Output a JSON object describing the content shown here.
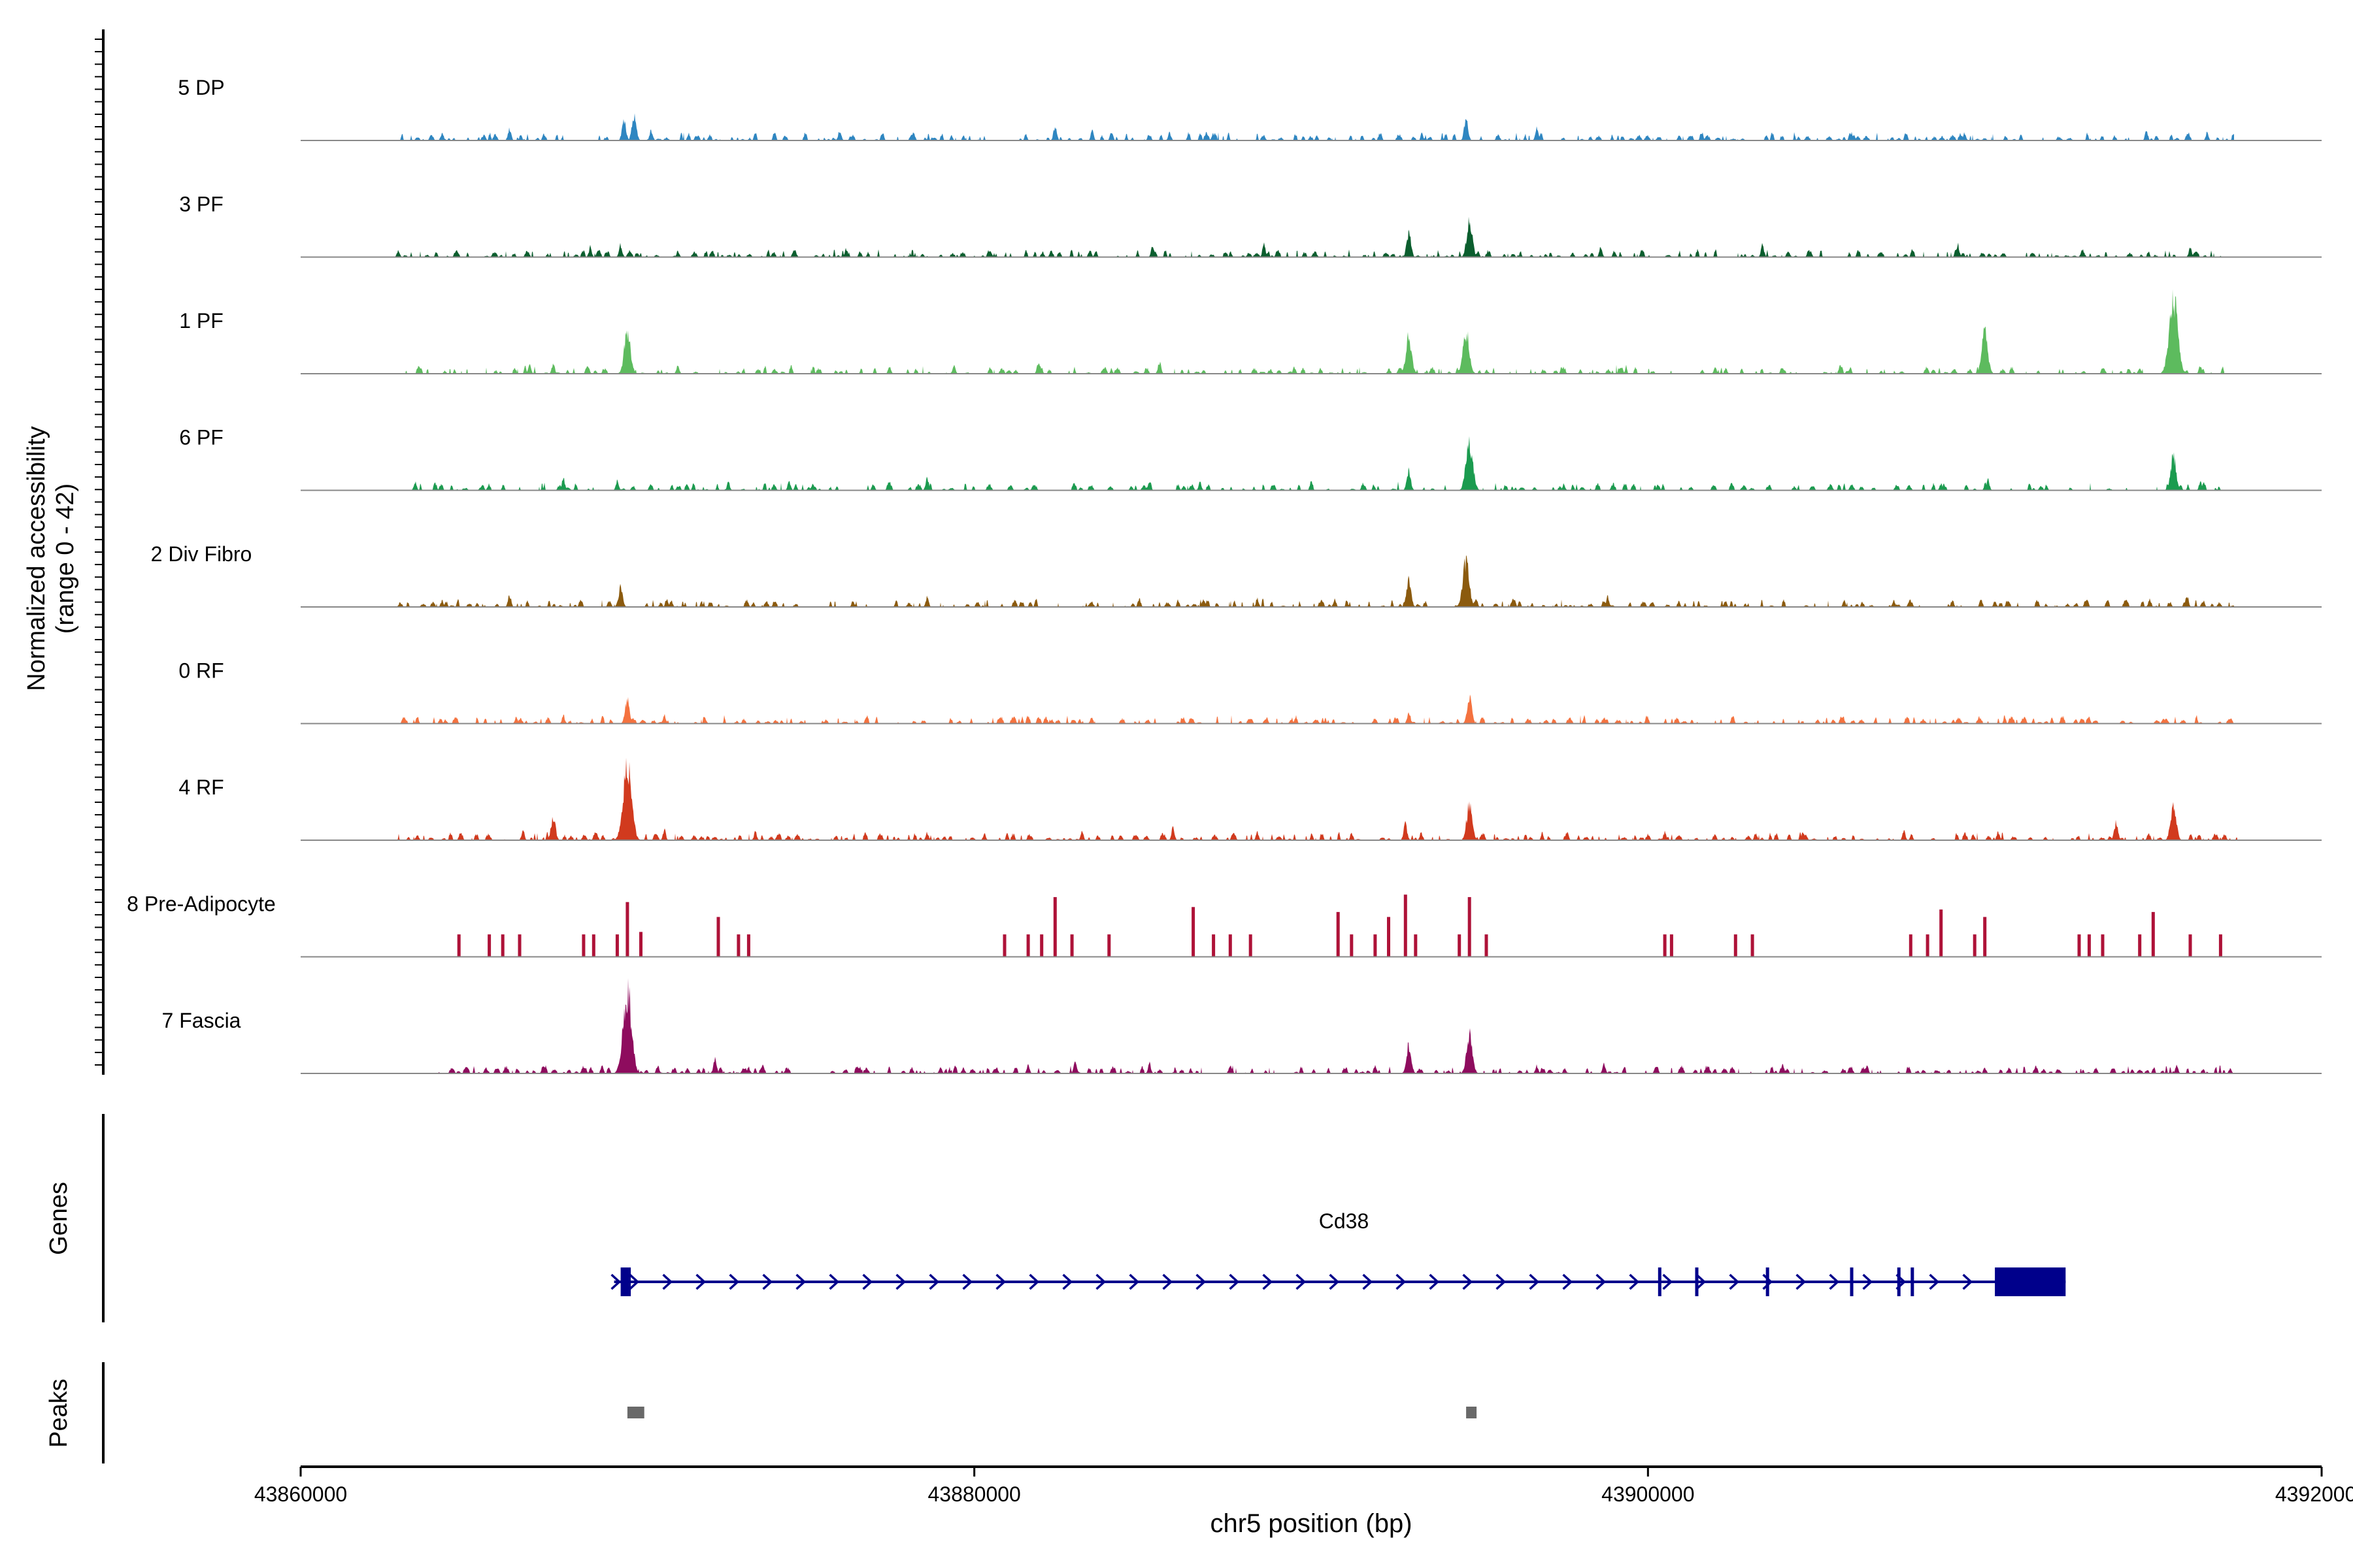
{
  "chart_data": {
    "type": "area",
    "ylabel": "Normalized accessibility",
    "ylabel_range": "(range 0 - 42)",
    "ylim": [
      0,
      42
    ],
    "xlabel": "chr5 position (bp)",
    "xlim": [
      43860000,
      43920000
    ],
    "xticks": [
      43860000,
      43880000,
      43900000,
      43920000
    ],
    "xtick_labels": [
      "43860000",
      "43880000",
      "43900000",
      "43920000"
    ],
    "tracks": [
      {
        "name": "5 DP",
        "color": "#2E86C1",
        "mode": "dense",
        "intensity": 0.13,
        "start": 43862900,
        "end": 43917400,
        "peaks": [
          [
            43864200,
            4
          ],
          [
            43866200,
            6
          ],
          [
            43869600,
            10
          ],
          [
            43869900,
            12
          ],
          [
            43870400,
            5
          ],
          [
            43876000,
            5
          ],
          [
            43878200,
            4
          ],
          [
            43882400,
            7
          ],
          [
            43883500,
            5
          ],
          [
            43885800,
            4
          ],
          [
            43894600,
            10
          ],
          [
            43896700,
            6
          ],
          [
            43901600,
            4
          ],
          [
            43906100,
            3
          ],
          [
            43909400,
            4
          ],
          [
            43914800,
            5
          ],
          [
            43916600,
            4
          ]
        ]
      },
      {
        "name": "3 PF",
        "color": "#0B5E2E",
        "mode": "dense",
        "intensity": 0.12,
        "start": 43862800,
        "end": 43917400,
        "peaks": [
          [
            43862900,
            3
          ],
          [
            43868600,
            5
          ],
          [
            43869500,
            6
          ],
          [
            43871200,
            3
          ],
          [
            43876200,
            4
          ],
          [
            43885300,
            6
          ],
          [
            43888600,
            6
          ],
          [
            43892900,
            12
          ],
          [
            43894700,
            18
          ],
          [
            43898600,
            5
          ],
          [
            43903400,
            6
          ],
          [
            43909200,
            6
          ],
          [
            43912900,
            4
          ],
          [
            43916100,
            5
          ]
        ]
      },
      {
        "name": "1 PF",
        "color": "#5DBB5E",
        "mode": "dense",
        "intensity": 0.1,
        "start": 43863100,
        "end": 43917100,
        "peaks": [
          [
            43866800,
            4
          ],
          [
            43867500,
            5
          ],
          [
            43869700,
            21
          ],
          [
            43871200,
            4
          ],
          [
            43879400,
            4
          ],
          [
            43881900,
            5
          ],
          [
            43885500,
            6
          ],
          [
            43889500,
            3
          ],
          [
            43892900,
            18
          ],
          [
            43894600,
            21
          ],
          [
            43897500,
            3
          ],
          [
            43902000,
            3
          ],
          [
            43906000,
            3
          ],
          [
            43910000,
            20
          ],
          [
            43914600,
            3
          ],
          [
            43915600,
            38
          ],
          [
            43916400,
            4
          ]
        ]
      },
      {
        "name": "6 PF",
        "color": "#1B9B4F",
        "mode": "dense",
        "intensity": 0.09,
        "start": 43862800,
        "end": 43917200,
        "peaks": [
          [
            43863400,
            4
          ],
          [
            43865400,
            3
          ],
          [
            43867800,
            6
          ],
          [
            43869400,
            5
          ],
          [
            43872700,
            4
          ],
          [
            43875200,
            3
          ],
          [
            43877000,
            3
          ],
          [
            43878600,
            6
          ],
          [
            43885200,
            5
          ],
          [
            43886700,
            4
          ],
          [
            43890000,
            4
          ],
          [
            43892900,
            10
          ],
          [
            43894700,
            24
          ],
          [
            43897500,
            3
          ],
          [
            43900300,
            3
          ],
          [
            43903600,
            3
          ],
          [
            43908700,
            3
          ],
          [
            43910100,
            5
          ],
          [
            43915600,
            17
          ],
          [
            43916400,
            4
          ]
        ]
      },
      {
        "name": "2 Div Fibro",
        "color": "#8B5A0E",
        "mode": "dense",
        "intensity": 0.1,
        "start": 43862800,
        "end": 43917400,
        "peaks": [
          [
            43864200,
            3
          ],
          [
            43866200,
            6
          ],
          [
            43869500,
            10
          ],
          [
            43871000,
            3
          ],
          [
            43876400,
            3
          ],
          [
            43878600,
            5
          ],
          [
            43881400,
            3
          ],
          [
            43884900,
            4
          ],
          [
            43886800,
            4
          ],
          [
            43888400,
            4
          ],
          [
            43890700,
            4
          ],
          [
            43892900,
            13
          ],
          [
            43894600,
            22
          ],
          [
            43898800,
            5
          ],
          [
            43902300,
            3
          ],
          [
            43907300,
            3
          ],
          [
            43910300,
            3
          ],
          [
            43914900,
            4
          ],
          [
            43916000,
            6
          ]
        ]
      },
      {
        "name": "0 RF",
        "color": "#F4723F",
        "mode": "dense",
        "intensity": 0.11,
        "start": 43862800,
        "end": 43917400,
        "peaks": [
          [
            43864300,
            2
          ],
          [
            43866400,
            3
          ],
          [
            43867800,
            4
          ],
          [
            43869700,
            12
          ],
          [
            43870800,
            4
          ],
          [
            43872000,
            3
          ],
          [
            43875600,
            2
          ],
          [
            43882300,
            2
          ],
          [
            43886200,
            3
          ],
          [
            43889400,
            2
          ],
          [
            43892900,
            6
          ],
          [
            43894700,
            13
          ],
          [
            43898700,
            3
          ],
          [
            43905500,
            2
          ],
          [
            43909200,
            3
          ],
          [
            43912700,
            2
          ],
          [
            43915300,
            3
          ]
        ]
      },
      {
        "name": "4 RF",
        "color": "#D13A1E",
        "mode": "dense",
        "intensity": 0.12,
        "start": 43862800,
        "end": 43917500,
        "peaks": [
          [
            43866600,
            5
          ],
          [
            43867500,
            12
          ],
          [
            43869700,
            36
          ],
          [
            43870800,
            5
          ],
          [
            43873500,
            4
          ],
          [
            43878600,
            4
          ],
          [
            43880300,
            3
          ],
          [
            43883200,
            4
          ],
          [
            43885900,
            6
          ],
          [
            43888400,
            4
          ],
          [
            43892800,
            8
          ],
          [
            43894700,
            18
          ],
          [
            43897600,
            4
          ],
          [
            43900500,
            4
          ],
          [
            43904600,
            4
          ],
          [
            43907600,
            5
          ],
          [
            43910400,
            4
          ],
          [
            43913900,
            9
          ],
          [
            43915600,
            18
          ]
        ]
      },
      {
        "name": "8 Pre-Adipocyte",
        "color": "#AE1238",
        "mode": "sparse",
        "intensity": 0,
        "start": 43864600,
        "end": 43917500,
        "peaks": [
          [
            43864700,
            9
          ],
          [
            43865600,
            9
          ],
          [
            43866000,
            9
          ],
          [
            43866500,
            9
          ],
          [
            43868400,
            9
          ],
          [
            43868700,
            9
          ],
          [
            43869400,
            9
          ],
          [
            43869700,
            22
          ],
          [
            43870100,
            10
          ],
          [
            43872400,
            16
          ],
          [
            43873000,
            9
          ],
          [
            43873300,
            9
          ],
          [
            43880900,
            9
          ],
          [
            43881600,
            9
          ],
          [
            43882000,
            9
          ],
          [
            43882400,
            24
          ],
          [
            43882900,
            9
          ],
          [
            43884000,
            9
          ],
          [
            43886500,
            20
          ],
          [
            43887100,
            9
          ],
          [
            43887600,
            9
          ],
          [
            43888200,
            9
          ],
          [
            43890800,
            18
          ],
          [
            43891200,
            9
          ],
          [
            43891900,
            9
          ],
          [
            43892300,
            16
          ],
          [
            43892800,
            25
          ],
          [
            43893100,
            9
          ],
          [
            43894400,
            9
          ],
          [
            43894700,
            24
          ],
          [
            43895200,
            9
          ],
          [
            43900500,
            9
          ],
          [
            43900700,
            9
          ],
          [
            43902600,
            9
          ],
          [
            43903100,
            9
          ],
          [
            43907800,
            9
          ],
          [
            43908300,
            9
          ],
          [
            43908700,
            19
          ],
          [
            43909700,
            9
          ],
          [
            43910000,
            16
          ],
          [
            43912800,
            9
          ],
          [
            43913100,
            9
          ],
          [
            43913500,
            9
          ],
          [
            43914600,
            9
          ],
          [
            43915000,
            18
          ],
          [
            43916100,
            9
          ],
          [
            43917000,
            9
          ]
        ]
      },
      {
        "name": "7 Fascia",
        "color": "#8E0C5E",
        "mode": "dense",
        "intensity": 0.13,
        "start": 43864000,
        "end": 43917400,
        "peaks": [
          [
            43865500,
            3
          ],
          [
            43867200,
            4
          ],
          [
            43869700,
            40
          ],
          [
            43870600,
            4
          ],
          [
            43872300,
            7
          ],
          [
            43873300,
            3
          ],
          [
            43876600,
            3
          ],
          [
            43879000,
            3
          ],
          [
            43881600,
            4
          ],
          [
            43883000,
            6
          ],
          [
            43885200,
            5
          ],
          [
            43887600,
            4
          ],
          [
            43892900,
            14
          ],
          [
            43894700,
            19
          ],
          [
            43896700,
            4
          ],
          [
            43898700,
            5
          ],
          [
            43901800,
            3
          ],
          [
            43904000,
            4
          ],
          [
            43906500,
            4
          ],
          [
            43910000,
            3
          ],
          [
            43913300,
            3
          ],
          [
            43915700,
            4
          ]
        ]
      }
    ],
    "genes_label": "Genes",
    "gene": {
      "name": "Cd38",
      "start": 43869500,
      "end": 43912400,
      "strand": "+",
      "exons": [
        [
          43869500,
          43869800
        ],
        [
          43900300,
          43900390
        ],
        [
          43901400,
          43901490
        ],
        [
          43903500,
          43903590
        ],
        [
          43906000,
          43906090
        ],
        [
          43907400,
          43907490
        ],
        [
          43907800,
          43907890
        ],
        [
          43910300,
          43912400
        ]
      ]
    },
    "peaks_label": "Peaks",
    "peak_regions": [
      [
        43869700,
        43870200
      ],
      [
        43894600,
        43894900
      ]
    ]
  }
}
